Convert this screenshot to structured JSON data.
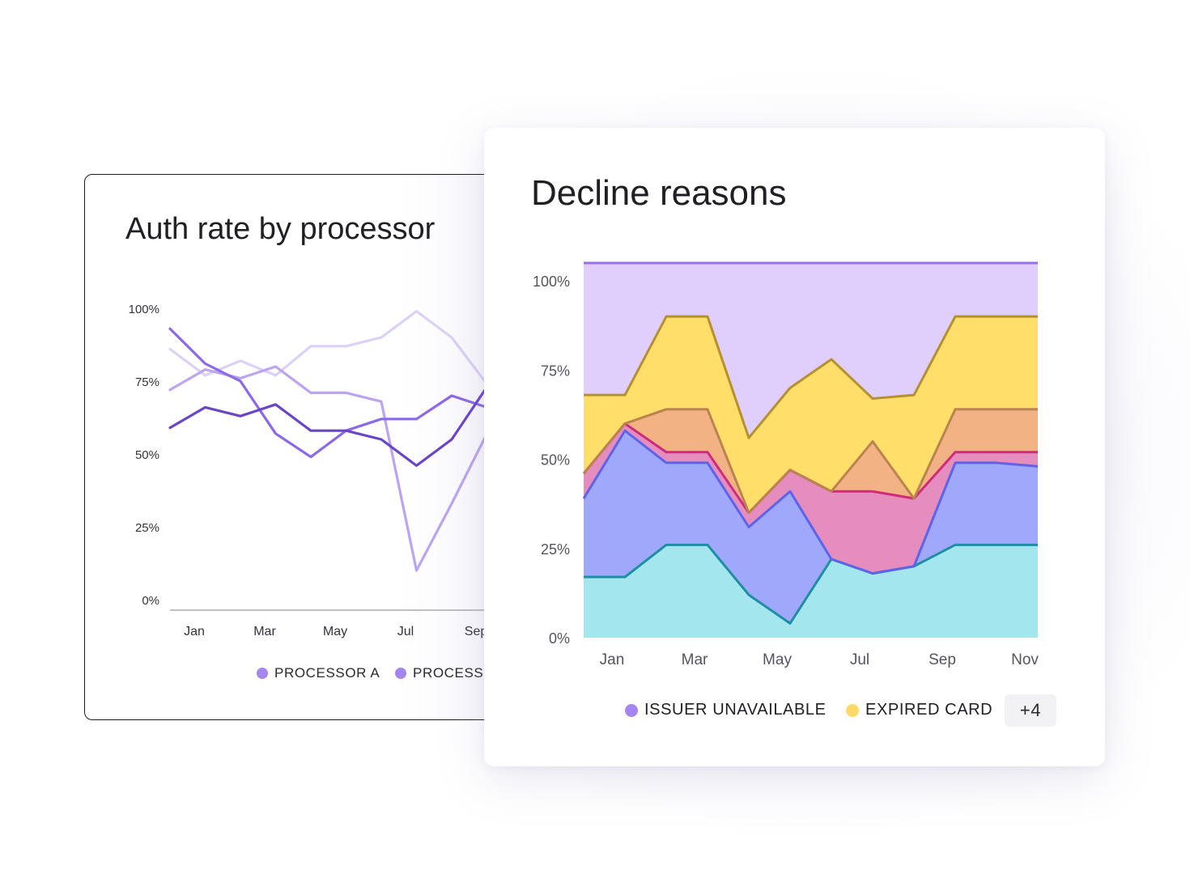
{
  "colors": {
    "processor_a": "#a585f0",
    "processor_b": "#a585f0",
    "issuer_unavailable": "#a585f0",
    "expired_card": "#ffd966"
  },
  "left_chart": {
    "legend": [
      "PROCESSOR A",
      "PROCESSO"
    ]
  },
  "right_chart": {
    "more_label": "+4",
    "legend": [
      "ISSUER UNAVAILABLE",
      "EXPIRED CARD"
    ]
  },
  "chart_data": [
    {
      "type": "line",
      "title": "Auth rate by processor",
      "xlabel": "",
      "ylabel": "",
      "x_ticks": [
        "Jan",
        "Mar",
        "May",
        "Jul",
        "Sep"
      ],
      "y_ticks": [
        "100%",
        "75%",
        "50%",
        "25%",
        "0%"
      ],
      "ylim": [
        0,
        100
      ],
      "categories": [
        "Jan",
        "Feb",
        "Mar",
        "Apr",
        "May",
        "Jun",
        "Jul",
        "Aug",
        "Sep",
        "Oct"
      ],
      "series": [
        {
          "values": [
            86,
            77,
            82,
            77,
            87,
            87,
            90,
            99,
            90,
            74
          ],
          "color": "#dcd0f7"
        },
        {
          "values": [
            72,
            79,
            76,
            80,
            71,
            71,
            68,
            10,
            33,
            57
          ],
          "color": "#bba4f1"
        },
        {
          "values": [
            93,
            81,
            75,
            57,
            49,
            58,
            62,
            62,
            70,
            66
          ],
          "color": "#8c69e6"
        },
        {
          "values": [
            59,
            66,
            63,
            67,
            58,
            58,
            55,
            46,
            55,
            73
          ],
          "color": "#6a45c8"
        }
      ],
      "grid": false
    },
    {
      "type": "area",
      "stacked": true,
      "normalized": true,
      "title": "Decline reasons",
      "xlabel": "",
      "ylabel": "",
      "x_ticks": [
        "Jan",
        "Mar",
        "May",
        "Jul",
        "Sep",
        "Nov"
      ],
      "y_ticks": [
        "100%",
        "75%",
        "50%",
        "25%",
        "0%"
      ],
      "ylim": [
        0,
        105
      ],
      "categories": [
        "Jan",
        "Feb",
        "Mar",
        "Apr",
        "May",
        "Jun",
        "Jul",
        "Aug",
        "Sep",
        "Oct",
        "Nov",
        "Dec"
      ],
      "boundaries": [
        {
          "values": [
            17,
            17,
            26,
            26,
            12,
            4,
            22,
            18,
            20,
            26,
            26,
            26
          ],
          "fill": "#a3e6ee",
          "line": "#1e8fa2"
        },
        {
          "values": [
            39,
            58,
            49,
            49,
            31,
            41,
            22,
            18,
            20,
            49,
            49,
            48
          ],
          "fill": "#a0a8fb",
          "line": "#5c63ec"
        },
        {
          "values": [
            46,
            60,
            52,
            52,
            35,
            47,
            41,
            41,
            39,
            52,
            52,
            52
          ],
          "fill": "#e58dbe",
          "line": "#cf2b7b"
        },
        {
          "values": [
            46,
            60,
            64,
            64,
            35,
            47,
            41,
            55,
            39,
            64,
            64,
            64
          ],
          "fill": "#f2b283",
          "line": "#ba8450"
        },
        {
          "values": [
            68,
            68,
            90,
            90,
            56,
            70,
            78,
            67,
            68,
            90,
            90,
            90
          ],
          "fill": "#ffde6a",
          "line": "#b6902c"
        },
        {
          "values": [
            105,
            105,
            105,
            105,
            105,
            105,
            105,
            105,
            105,
            105,
            105,
            105
          ],
          "fill": "#e0cffd",
          "line": "#9670ea"
        }
      ],
      "legend_position": "bottom",
      "grid": false
    }
  ]
}
